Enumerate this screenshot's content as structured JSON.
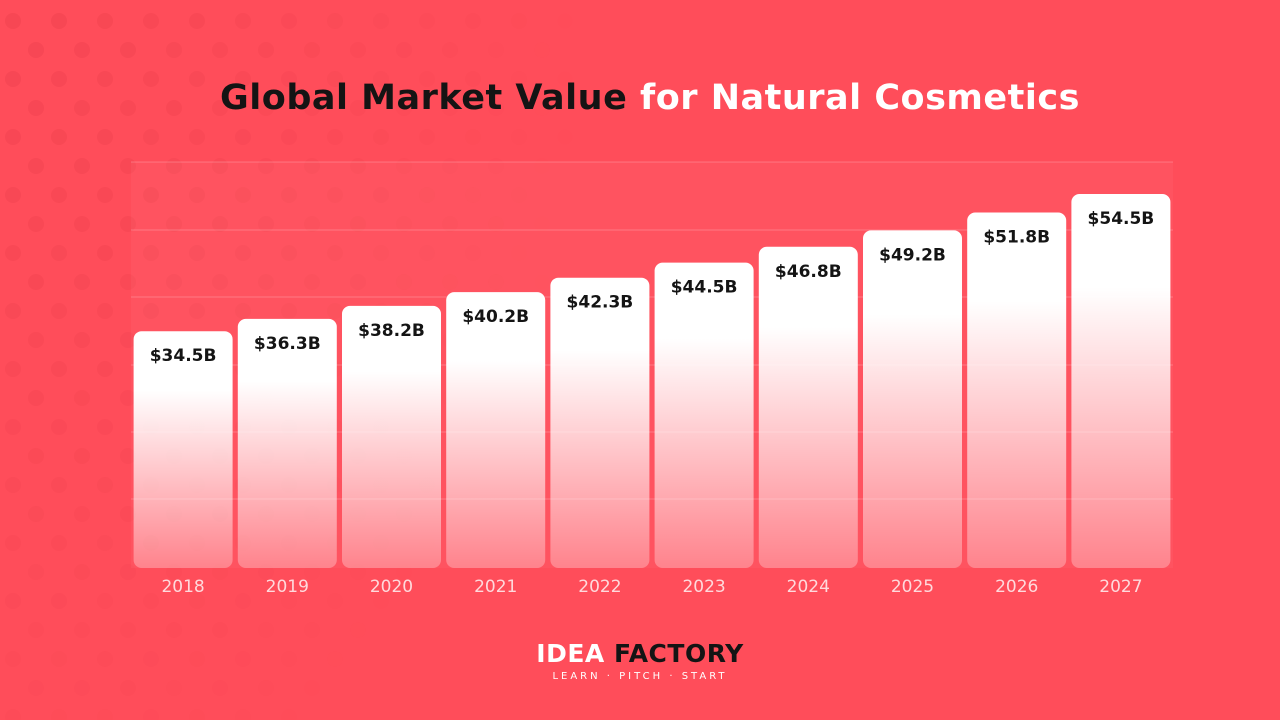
{
  "title": {
    "part1": "Global Market Value",
    "part2": "for Natural Cosmetics"
  },
  "chart_data": {
    "type": "bar",
    "title": "Global Market Value for Natural Cosmetics",
    "xlabel": "",
    "ylabel": "",
    "categories": [
      "2018",
      "2019",
      "2020",
      "2021",
      "2022",
      "2023",
      "2024",
      "2025",
      "2026",
      "2027"
    ],
    "values": [
      34.5,
      36.3,
      38.2,
      40.2,
      42.3,
      44.5,
      46.8,
      49.2,
      51.8,
      54.5
    ],
    "value_labels": [
      "$34.5B",
      "$36.3B",
      "$38.2B",
      "$40.2B",
      "$42.3B",
      "$44.5B",
      "$46.8B",
      "$49.2B",
      "$51.8B",
      "$54.5B"
    ],
    "units": "USD billions",
    "ylim": [
      0,
      60
    ],
    "grid": true,
    "legend": "none"
  },
  "footer": {
    "brand_part1": "IDEA",
    "brand_part2": "FACTORY",
    "tagline": "LEARN · PITCH · START"
  },
  "colors": {
    "background": "#ff4d5a",
    "bar": "#ffffff",
    "title_dark": "#141414",
    "title_light": "#ffffff",
    "value_label": "#141414",
    "tick_label": "#ffd9dc"
  }
}
